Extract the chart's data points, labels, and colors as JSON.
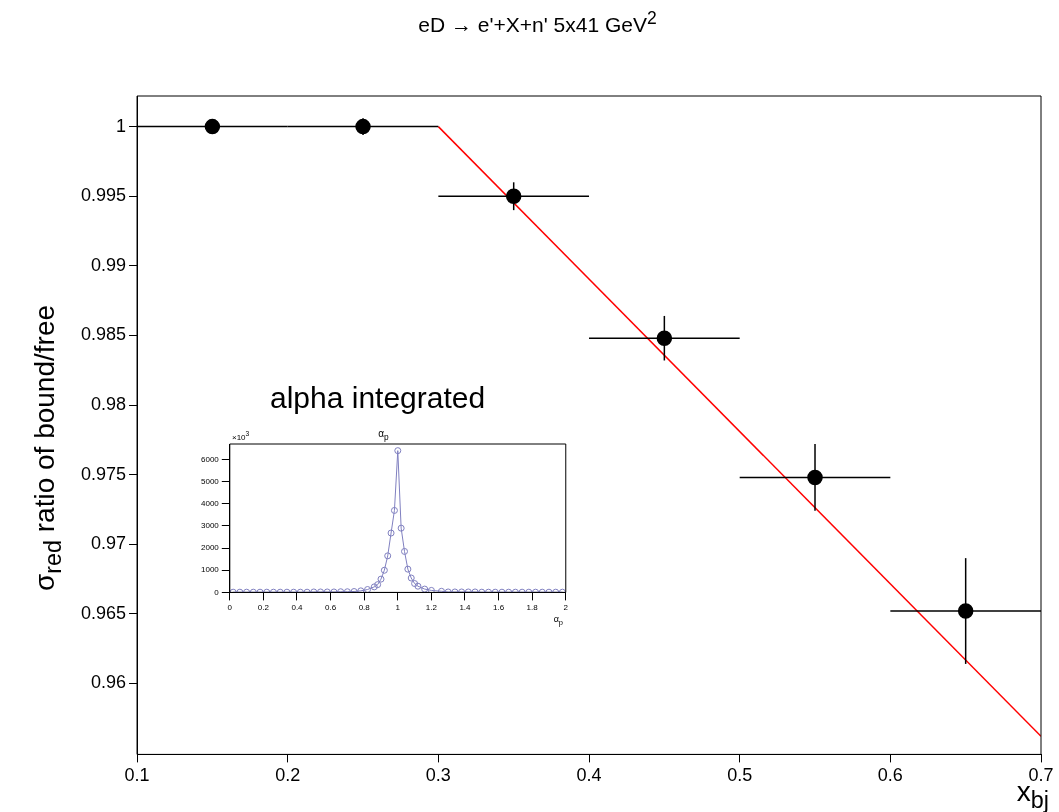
{
  "chart_data": [
    {
      "type": "scatter",
      "title": "eD → e'+X+n' 5x41 GeV$^{2}$",
      "xlabel": "x$_{bj}$",
      "ylabel": "σ$_{red}$ ratio of bound/free",
      "annotations": [
        "alpha integrated"
      ],
      "xlim": [
        0.1,
        0.7
      ],
      "xticks": [
        0.1,
        0.2,
        0.3,
        0.4,
        0.5,
        0.6,
        0.7
      ],
      "ylim": [
        0.9549,
        1.0022
      ],
      "yticks": [
        0.96,
        0.965,
        0.97,
        0.975,
        0.98,
        0.985,
        0.99,
        0.995,
        1
      ],
      "marker": "circle",
      "series": [
        {
          "color": "#000000",
          "x": [
            0.15,
            0.25,
            0.35,
            0.45,
            0.55,
            0.65
          ],
          "values": [
            1.0,
            1.0,
            0.995,
            0.9848,
            0.9748,
            0.9652
          ],
          "errors": [
            0.0004,
            0.0006,
            0.001,
            0.0016,
            0.0024,
            0.0038
          ],
          "xerrors": [
            0.05,
            0.05,
            0.05,
            0.05,
            0.05,
            0.05
          ]
        },
        {
          "type": "line",
          "color": "#ff0000",
          "marker": "none",
          "x": [
            0.3,
            0.7
          ],
          "values": [
            1.0,
            0.9562
          ]
        }
      ]
    },
    {
      "type": "line",
      "title": "α$_{p}$",
      "xlabel": "α$_{p}$",
      "annotations": [
        "×10$^{3}$"
      ],
      "xlim": [
        0,
        2
      ],
      "xticks": [
        0,
        0.2,
        0.4,
        0.6,
        0.8,
        1,
        1.2,
        1.4,
        1.6,
        1.8,
        2
      ],
      "ylim": [
        0,
        6700
      ],
      "yticks": [
        0,
        1000,
        2000,
        3000,
        4000,
        5000,
        6000
      ],
      "marker": "circle",
      "series": [
        {
          "color": "#8080c0",
          "x": [
            0.02,
            0.06,
            0.1,
            0.14,
            0.18,
            0.22,
            0.26,
            0.3,
            0.34,
            0.38,
            0.42,
            0.46,
            0.5,
            0.54,
            0.58,
            0.62,
            0.66,
            0.7,
            0.74,
            0.78,
            0.82,
            0.86,
            0.88,
            0.9,
            0.92,
            0.94,
            0.96,
            0.98,
            1.0,
            1.02,
            1.04,
            1.06,
            1.08,
            1.1,
            1.12,
            1.16,
            1.2,
            1.26,
            1.3,
            1.34,
            1.38,
            1.42,
            1.46,
            1.5,
            1.54,
            1.58,
            1.62,
            1.66,
            1.7,
            1.74,
            1.78,
            1.82,
            1.86,
            1.9,
            1.94,
            1.98
          ],
          "values": [
            10,
            10,
            10,
            10,
            10,
            10,
            10,
            10,
            10,
            10,
            10,
            10,
            20,
            20,
            20,
            20,
            30,
            30,
            40,
            70,
            130,
            250,
            350,
            600,
            1000,
            1650,
            2680,
            3700,
            6400,
            2900,
            1850,
            1050,
            650,
            400,
            280,
            150,
            90,
            50,
            20,
            20,
            20,
            20,
            20,
            10,
            10,
            10,
            10,
            10,
            10,
            10,
            10,
            10,
            10,
            10,
            10,
            10
          ]
        }
      ]
    }
  ]
}
